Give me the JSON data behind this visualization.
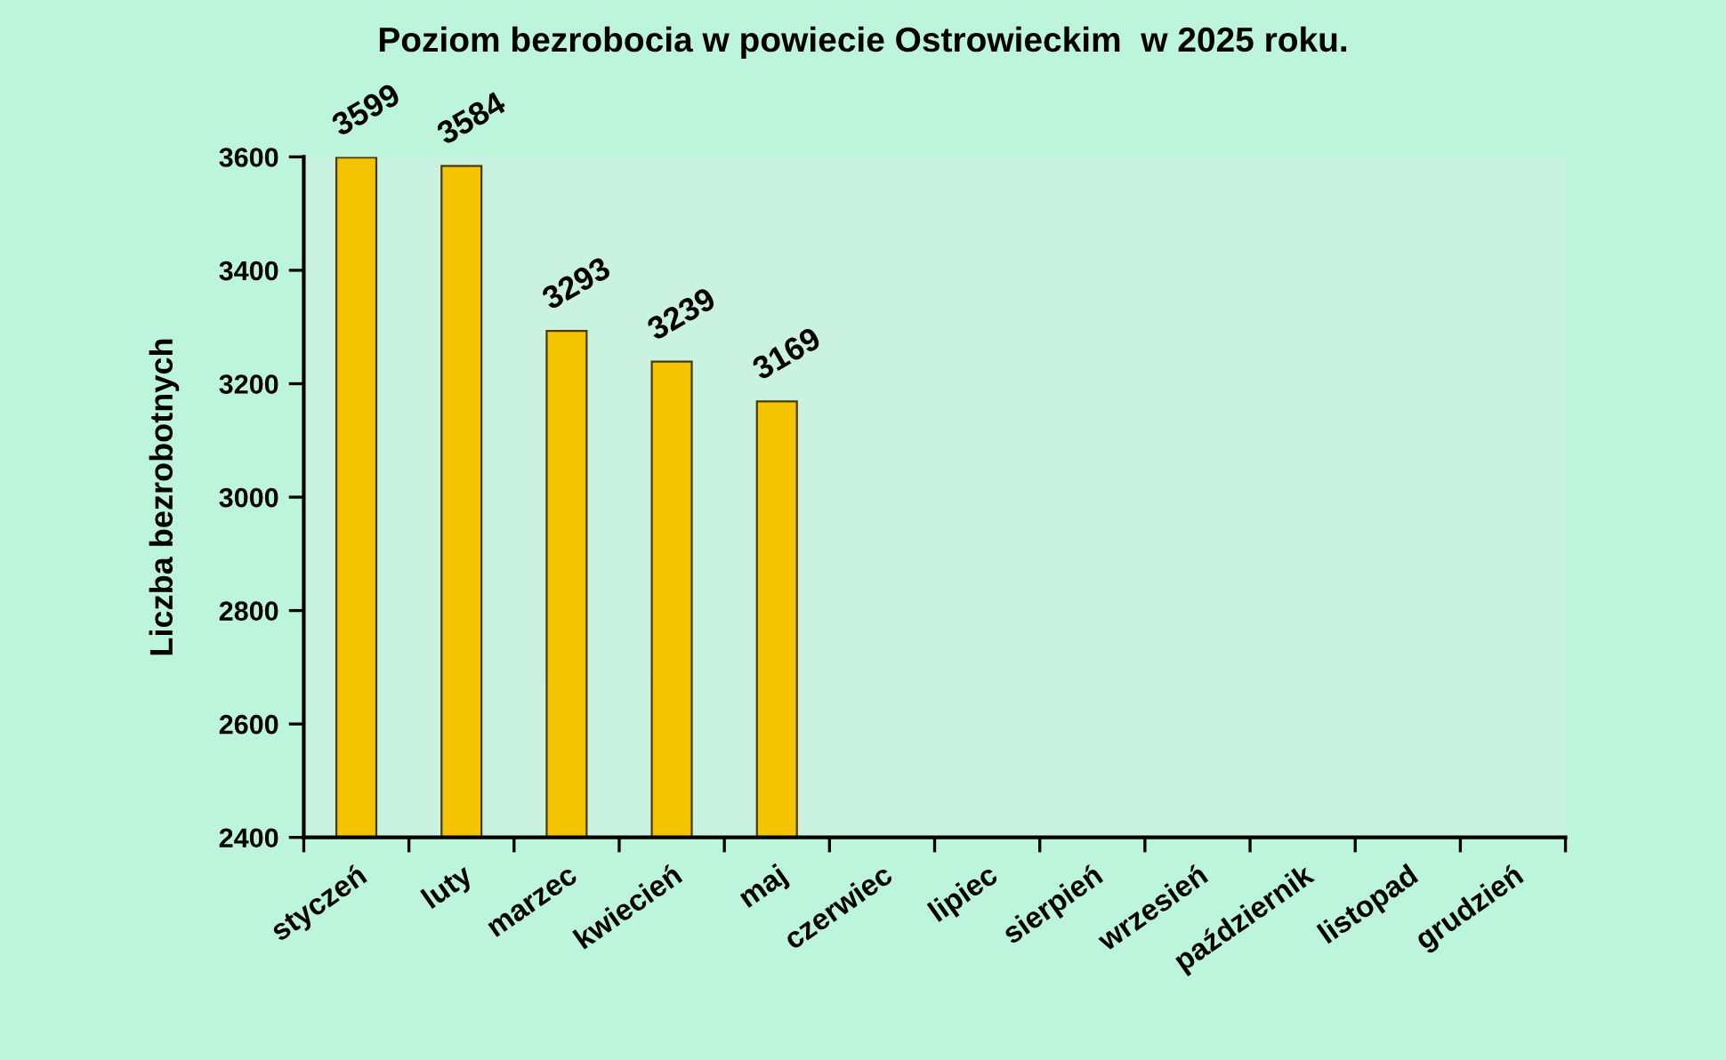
{
  "chart_data": {
    "type": "bar",
    "title": "Poziom bezrobocia w powiecie Ostrowieckim  w 2025 roku.",
    "ylabel": "Liczba bezrobotnych",
    "categories": [
      "styczeń",
      "luty",
      "marzec",
      "kwiecień",
      "maj",
      "czerwiec",
      "lipiec",
      "sierpień",
      "wrzesień",
      "październik",
      "listopad",
      "grudzień"
    ],
    "values": [
      3599,
      3584,
      3293,
      3239,
      3169,
      null,
      null,
      null,
      null,
      null,
      null,
      null
    ],
    "color": "#f5c400",
    "ylim": [
      2400,
      3600
    ],
    "yticks": [
      2400,
      2600,
      2800,
      3000,
      3200,
      3400,
      3600
    ],
    "data_labels": true
  }
}
